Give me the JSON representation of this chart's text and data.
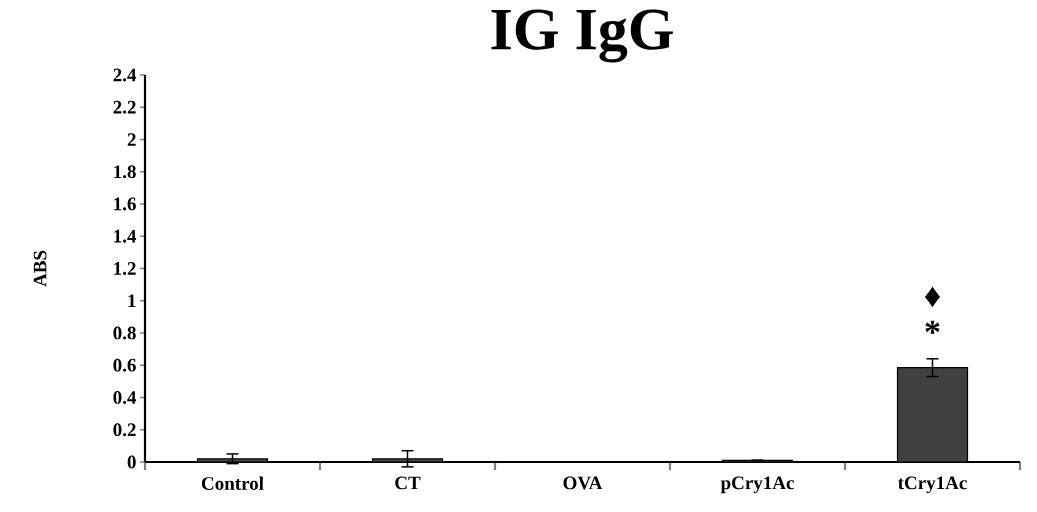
{
  "chart_data": {
    "type": "bar",
    "title": "IG IgG",
    "ylabel": "ABS",
    "categories": [
      "Control",
      "CT",
      "OVA",
      "pCry1Ac",
      "tCry1Ac"
    ],
    "values": [
      0.02,
      0.02,
      0,
      0.01,
      0.585
    ],
    "errors": [
      0.03,
      0.05,
      null,
      null,
      0.055
    ],
    "color": "#404040",
    "ylim": [
      0,
      2.4
    ],
    "yticks": [
      0,
      0.2,
      0.4,
      0.6,
      0.8,
      1,
      1.2,
      1.4,
      1.6,
      1.8,
      2,
      2.2,
      2.4
    ],
    "annotations": [
      "*",
      "♦"
    ],
    "grid": false
  }
}
